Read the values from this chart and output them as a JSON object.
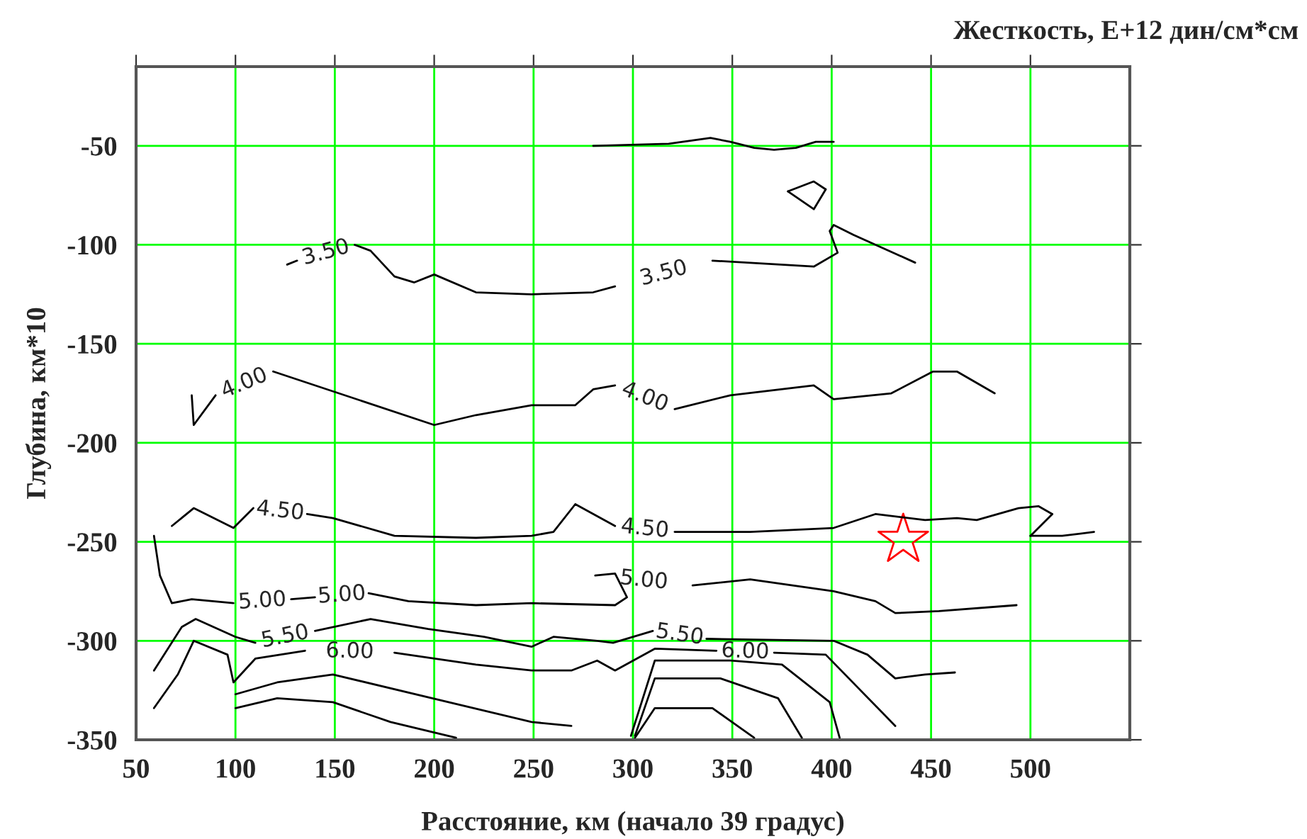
{
  "chart_data": {
    "type": "line",
    "title": "Жесткость, E+12 дин/см*см",
    "xlabel": "Расстояние, км (начало 39 градус)",
    "ylabel": "Глубина, км*10",
    "xlim": [
      50,
      550
    ],
    "ylim": [
      -350,
      -10
    ],
    "xticks": [
      50,
      100,
      150,
      200,
      250,
      300,
      350,
      400,
      450,
      500
    ],
    "yticks": [
      -50,
      -100,
      -150,
      -200,
      -250,
      -300,
      -350
    ],
    "grid": true,
    "legend": false,
    "series": [
      {
        "color": "#000000",
        "x": [
          280,
          318,
          339,
          349,
          361,
          371,
          382,
          392,
          401
        ],
        "values": [
          -50,
          -49,
          -46,
          -48,
          -51,
          -52,
          -51,
          -48,
          -48
        ]
      },
      {
        "color": "#000000",
        "x": [
          378,
          391,
          397
        ],
        "values": [
          -73,
          -68,
          -72
        ]
      },
      {
        "color": "#000000",
        "x": [
          378,
          391,
          397
        ],
        "values": [
          -73,
          -82,
          -72
        ]
      },
      {
        "name": "3.50",
        "color": "#000000",
        "x": [
          126,
          131,
          140,
          160,
          168,
          180,
          190,
          200,
          221,
          249,
          280,
          291,
          301,
          340,
          391,
          403,
          399,
          401,
          411,
          442
        ],
        "values": [
          -110,
          -108,
          null,
          -100,
          -103,
          -116,
          -119,
          -115,
          -124,
          -125,
          -124,
          -121,
          null,
          -108,
          -111,
          -104,
          -93,
          -90,
          -95,
          -109
        ]
      },
      {
        "name": "4.00",
        "color": "#000000",
        "x": [
          78,
          79,
          90,
          105,
          119,
          200,
          221,
          249,
          271,
          280,
          291,
          306,
          321,
          349,
          391,
          401,
          430,
          451,
          463,
          482
        ],
        "values": [
          -176,
          -191,
          -176,
          null,
          -164,
          -191,
          -186,
          -181,
          -181,
          -173,
          -171,
          null,
          -183,
          -176,
          -171,
          -178,
          -175,
          -164,
          -164,
          -175
        ]
      },
      {
        "name": "4.50",
        "color": "#000000",
        "x": [
          68,
          79,
          99,
          109,
          122,
          136,
          149,
          180,
          221,
          249,
          260,
          271,
          291,
          306,
          321,
          359,
          401,
          422,
          447,
          463,
          473,
          494,
          504,
          511
        ],
        "values": [
          -242,
          -233,
          -243,
          -233,
          null,
          -236,
          -238,
          -247,
          -248,
          -247,
          -245,
          -231,
          -242,
          null,
          -245,
          -245,
          -243,
          -236,
          -239,
          -238,
          -239,
          -233,
          -232,
          -236
        ]
      },
      {
        "color": "#000000",
        "x": [
          500,
          511
        ],
        "values": [
          -247,
          -236
        ]
      },
      {
        "color": "#000000",
        "x": [
          500,
          516,
          532
        ],
        "values": [
          -247,
          -247,
          -245
        ]
      },
      {
        "name": "5.00",
        "color": "#000000",
        "x": [
          59,
          62,
          68,
          78,
          99,
          113,
          128,
          140,
          153,
          167,
          187,
          221,
          249,
          291,
          297,
          291,
          281,
          306,
          330,
          359,
          401,
          422,
          432,
          454,
          493
        ],
        "values": [
          -247,
          -267,
          -281,
          -279,
          -281,
          null,
          -279,
          -278,
          null,
          -276,
          -280,
          -282,
          -281,
          -282,
          -278,
          -266,
          -267,
          null,
          -272,
          -269,
          -275,
          -280,
          -286,
          -285,
          -282
        ]
      },
      {
        "name": "5.50",
        "color": "#000000",
        "x": [
          59,
          73,
          80,
          100,
          110,
          125,
          140,
          168,
          197,
          225,
          249,
          260,
          282,
          290,
          310,
          324,
          337,
          401,
          418,
          432,
          447,
          462
        ],
        "values": [
          -315,
          -293,
          -289,
          -298,
          -301,
          null,
          -295,
          -289,
          -294,
          -298,
          -303,
          -298,
          -300,
          -301,
          -295,
          null,
          -299,
          -300,
          -307,
          -319,
          -317,
          -316
        ]
      },
      {
        "name": "6.00",
        "color": "#000000",
        "x": [
          59,
          71,
          79,
          96,
          99,
          110,
          135,
          157,
          180,
          221,
          249,
          269,
          282,
          291,
          311,
          342,
          356,
          371,
          397,
          432
        ],
        "values": [
          -334,
          -317,
          -300,
          -307,
          -321,
          -309,
          -305,
          null,
          -306,
          -312,
          -315,
          -315,
          -310,
          -315,
          -304,
          -305,
          null,
          -306,
          -307,
          -343
        ]
      },
      {
        "color": "#000000",
        "x": [
          100,
          121,
          149,
          199,
          249,
          269
        ],
        "values": [
          -327,
          -321,
          -317,
          -329,
          -341,
          -343
        ]
      },
      {
        "color": "#000000",
        "x": [
          100,
          121,
          149,
          178,
          211
        ],
        "values": [
          -334,
          -329,
          -331,
          -341,
          -349
        ]
      },
      {
        "color": "#000000",
        "x": [
          299,
          311,
          349,
          375,
          399,
          404
        ],
        "values": [
          -348,
          -310,
          -310,
          -312,
          -331,
          -349
        ]
      },
      {
        "color": "#000000",
        "x": [
          301,
          311,
          344,
          373,
          385
        ],
        "values": [
          -348,
          -319,
          -319,
          -329,
          -349
        ]
      },
      {
        "color": "#000000",
        "x": [
          301,
          311,
          340,
          361
        ],
        "values": [
          -349,
          -334,
          -334,
          -349
        ]
      },
      {
        "type": "scatter",
        "color": "#ff0000",
        "marker": "star",
        "x": [
          436
        ],
        "values": [
          -249
        ]
      }
    ]
  }
}
